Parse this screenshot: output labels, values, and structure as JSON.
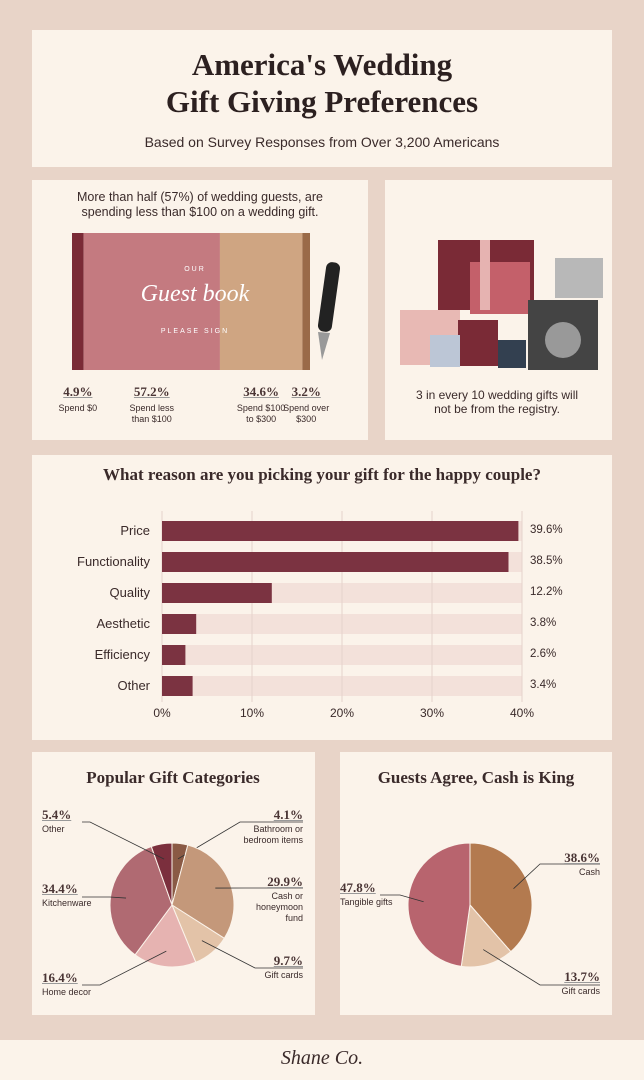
{
  "header": {
    "title": "America's Wedding Gift Giving Preferences",
    "subtitle": "Based on Survey Responses from Over 3,200 Americans"
  },
  "guest_book_cover": [
    "OUR",
    "Guest book",
    "PLEASE SIGN"
  ],
  "gifts_panel": {
    "caption": "3 in every 10 wedding gifts will not be from the registry."
  },
  "footer": {
    "brand": "Shane Co."
  },
  "chart_data": [
    {
      "type": "proportion-bar",
      "title": "More than half (57%) of wedding guests, are spending less than $100 on a wedding gift.",
      "categories": [
        "Spend $0",
        "Spend less than $100",
        "Spend $100 to $300",
        "Spend over $300"
      ],
      "values": [
        4.9,
        57.2,
        34.6,
        3.2
      ],
      "value_labels": [
        "4.9%",
        "57.2%",
        "34.6%",
        "3.2%"
      ],
      "colors": [
        "#7a2a36",
        "#c47a80",
        "#cfa582",
        "#9a6a48"
      ]
    },
    {
      "type": "bar",
      "orientation": "horizontal",
      "title": "What reason are you picking your gift for the happy couple?",
      "categories": [
        "Price",
        "Functionality",
        "Quality",
        "Aesthetic",
        "Efficiency",
        "Other"
      ],
      "values": [
        39.6,
        38.5,
        12.2,
        3.8,
        2.6,
        3.4
      ],
      "value_labels": [
        "39.6%",
        "38.5%",
        "12.2%",
        "3.8%",
        "2.6%",
        "3.4%"
      ],
      "color": "#7b3341",
      "xlim": [
        0,
        40
      ],
      "xticks": [
        {
          "value": 0,
          "label": "0%"
        },
        {
          "value": 10,
          "label": "10%"
        },
        {
          "value": 20,
          "label": "20%"
        },
        {
          "value": 30,
          "label": "30%"
        },
        {
          "value": 40,
          "label": "40%"
        }
      ],
      "grid": true
    },
    {
      "type": "pie",
      "title": "Popular Gift Categories",
      "categories": [
        "Bathroom or bedroom items",
        "Cash or honeymoon fund",
        "Gift cards",
        "Home decor",
        "Kitchenware",
        "Other"
      ],
      "values": [
        4.1,
        29.9,
        9.7,
        16.4,
        34.4,
        5.4
      ],
      "value_labels": [
        "4.1%",
        "29.9%",
        "9.7%",
        "16.4%",
        "34.4%",
        "5.4%"
      ],
      "colors": [
        "#8a5a45",
        "#c4987a",
        "#e3c3a8",
        "#e6b3b1",
        "#b06a72",
        "#7b2f3d"
      ]
    },
    {
      "type": "pie",
      "title": "Guests Agree, Cash is King",
      "categories": [
        "Cash",
        "Gift cards",
        "Tangible gifts"
      ],
      "values": [
        38.6,
        13.7,
        47.8
      ],
      "value_labels": [
        "38.6%",
        "13.7%",
        "47.8%"
      ],
      "colors": [
        "#b37a4f",
        "#e3c3a8",
        "#b8646e"
      ]
    }
  ]
}
